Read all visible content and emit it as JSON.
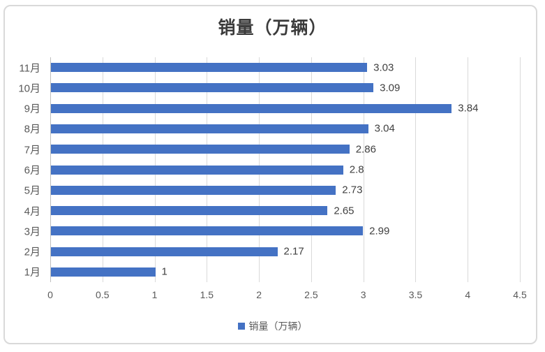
{
  "chart_data": {
    "type": "bar",
    "orientation": "horizontal",
    "title": "销量（万辆）",
    "series_name": "销量（万辆）",
    "categories": [
      "1月",
      "2月",
      "3月",
      "4月",
      "5月",
      "6月",
      "7月",
      "8月",
      "9月",
      "10月",
      "11月"
    ],
    "values": [
      1,
      2.17,
      2.99,
      2.65,
      2.73,
      2.8,
      2.86,
      3.04,
      3.84,
      3.09,
      3.03
    ],
    "data_labels": [
      "1",
      "2.17",
      "2.99",
      "2.65",
      "2.73",
      "2.8",
      "2.86",
      "3.04",
      "3.84",
      "3.09",
      "3.03"
    ],
    "xlim": [
      0,
      4.5
    ],
    "x_ticks": [
      0,
      0.5,
      1,
      1.5,
      2,
      2.5,
      3,
      3.5,
      4,
      4.5
    ],
    "x_tick_labels": [
      "0",
      "0.5",
      "1",
      "1.5",
      "2",
      "2.5",
      "3",
      "3.5",
      "4",
      "4.5"
    ],
    "grid": true,
    "legend_position": "bottom",
    "legend": {
      "label": "销量（万辆）"
    },
    "colors": {
      "bar": "#4472C4",
      "gridline": "#D9D9D9",
      "axis_line": "#BFBFBF",
      "tick_label": "#595959",
      "category_label": "#595959",
      "data_label": "#404040",
      "title": "#3b3b3b",
      "frame_border": "#D9D9D9",
      "legend_text": "#595959"
    }
  }
}
